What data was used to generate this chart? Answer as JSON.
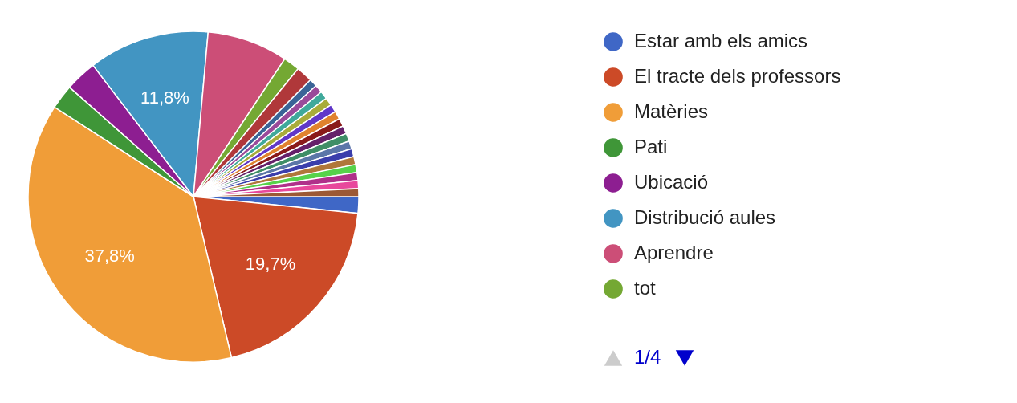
{
  "chart_data": {
    "type": "pie",
    "categories": [
      "Estar amb els amics",
      "El tracte dels professors",
      "Matèries",
      "Pati",
      "Ubicació",
      "Distribució aules",
      "Aprendre",
      "tot",
      null,
      null,
      null,
      null,
      null,
      null,
      null,
      null,
      null,
      null,
      null,
      null,
      null,
      null,
      null,
      null,
      null
    ],
    "values": [
      1.6,
      19.7,
      37.8,
      2.4,
      3.1,
      11.8,
      7.9,
      1.6,
      1.6,
      0.78,
      0.78,
      0.78,
      0.78,
      0.78,
      0.78,
      0.78,
      0.78,
      0.78,
      0.78,
      0.78,
      0.78,
      0.78,
      0.78,
      0.78,
      0.78
    ],
    "colors": [
      "#3f67c6",
      "#cc4a27",
      "#f09d38",
      "#3f9638",
      "#8d1e91",
      "#4295c2",
      "#cc4e77",
      "#74a833",
      "#b0383a",
      "#3a6497",
      "#9a4a9a",
      "#3fa99b",
      "#a8ac3a",
      "#6037c8",
      "#e0822e",
      "#8a1a1a",
      "#65206a",
      "#3f8e66",
      "#5b76a8",
      "#3b3eac",
      "#b0773a",
      "#56d24a",
      "#b0308a",
      "#e8489c",
      "#9c5935"
    ],
    "value_labels": [
      null,
      "19,7%",
      "37,8%",
      null,
      null,
      "11,8%",
      null,
      null,
      null,
      null,
      null,
      null,
      null,
      null,
      null,
      null,
      null,
      null,
      null,
      null,
      null,
      null,
      null,
      null,
      null
    ],
    "legend": "right",
    "annotations": [
      "1/4"
    ]
  }
}
